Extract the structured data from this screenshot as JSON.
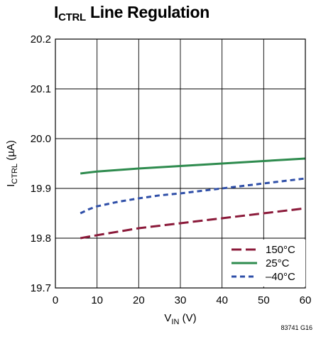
{
  "title": {
    "main": "I",
    "sub": "CTRL",
    "rest": " Line Regulation"
  },
  "figure_id": "83741 G16",
  "chart_data": {
    "type": "line",
    "title": "ICTRL Line Regulation",
    "xlabel": {
      "main": "V",
      "sub": "IN",
      "rest": " (V)"
    },
    "ylabel": {
      "main": "I",
      "sub": "CTRL",
      "rest": " (µA)"
    },
    "xlim": [
      0,
      60
    ],
    "ylim": [
      19.7,
      20.2
    ],
    "xticks": [
      0,
      10,
      20,
      30,
      40,
      50,
      60
    ],
    "yticks": [
      19.7,
      19.8,
      19.9,
      20.0,
      20.1,
      20.2
    ],
    "xtick_labels": [
      "0",
      "10",
      "20",
      "30",
      "40",
      "50",
      "60"
    ],
    "ytick_labels": [
      "19.7",
      "19.8",
      "19.9",
      "20.0",
      "20.1",
      "20.2"
    ],
    "grid": true,
    "legend_position": "bottom-right",
    "series": [
      {
        "name": "150°C",
        "color": "#8b1a3a",
        "dash": "long-dash",
        "x": [
          6,
          10,
          20,
          30,
          40,
          50,
          60
        ],
        "y": [
          19.8,
          19.806,
          19.82,
          19.83,
          19.84,
          19.85,
          19.86
        ]
      },
      {
        "name": "25°C",
        "color": "#2e8b4e",
        "dash": "solid",
        "x": [
          6,
          10,
          20,
          30,
          40,
          50,
          60
        ],
        "y": [
          19.93,
          19.934,
          19.94,
          19.945,
          19.95,
          19.955,
          19.96
        ]
      },
      {
        "name": "–40°C",
        "color": "#2f4fa8",
        "dash": "short-dash",
        "x": [
          6,
          8,
          10,
          15,
          20,
          25,
          30,
          40,
          50,
          60
        ],
        "y": [
          19.85,
          19.858,
          19.864,
          19.873,
          19.88,
          19.886,
          19.89,
          19.9,
          19.91,
          19.92
        ]
      }
    ]
  }
}
